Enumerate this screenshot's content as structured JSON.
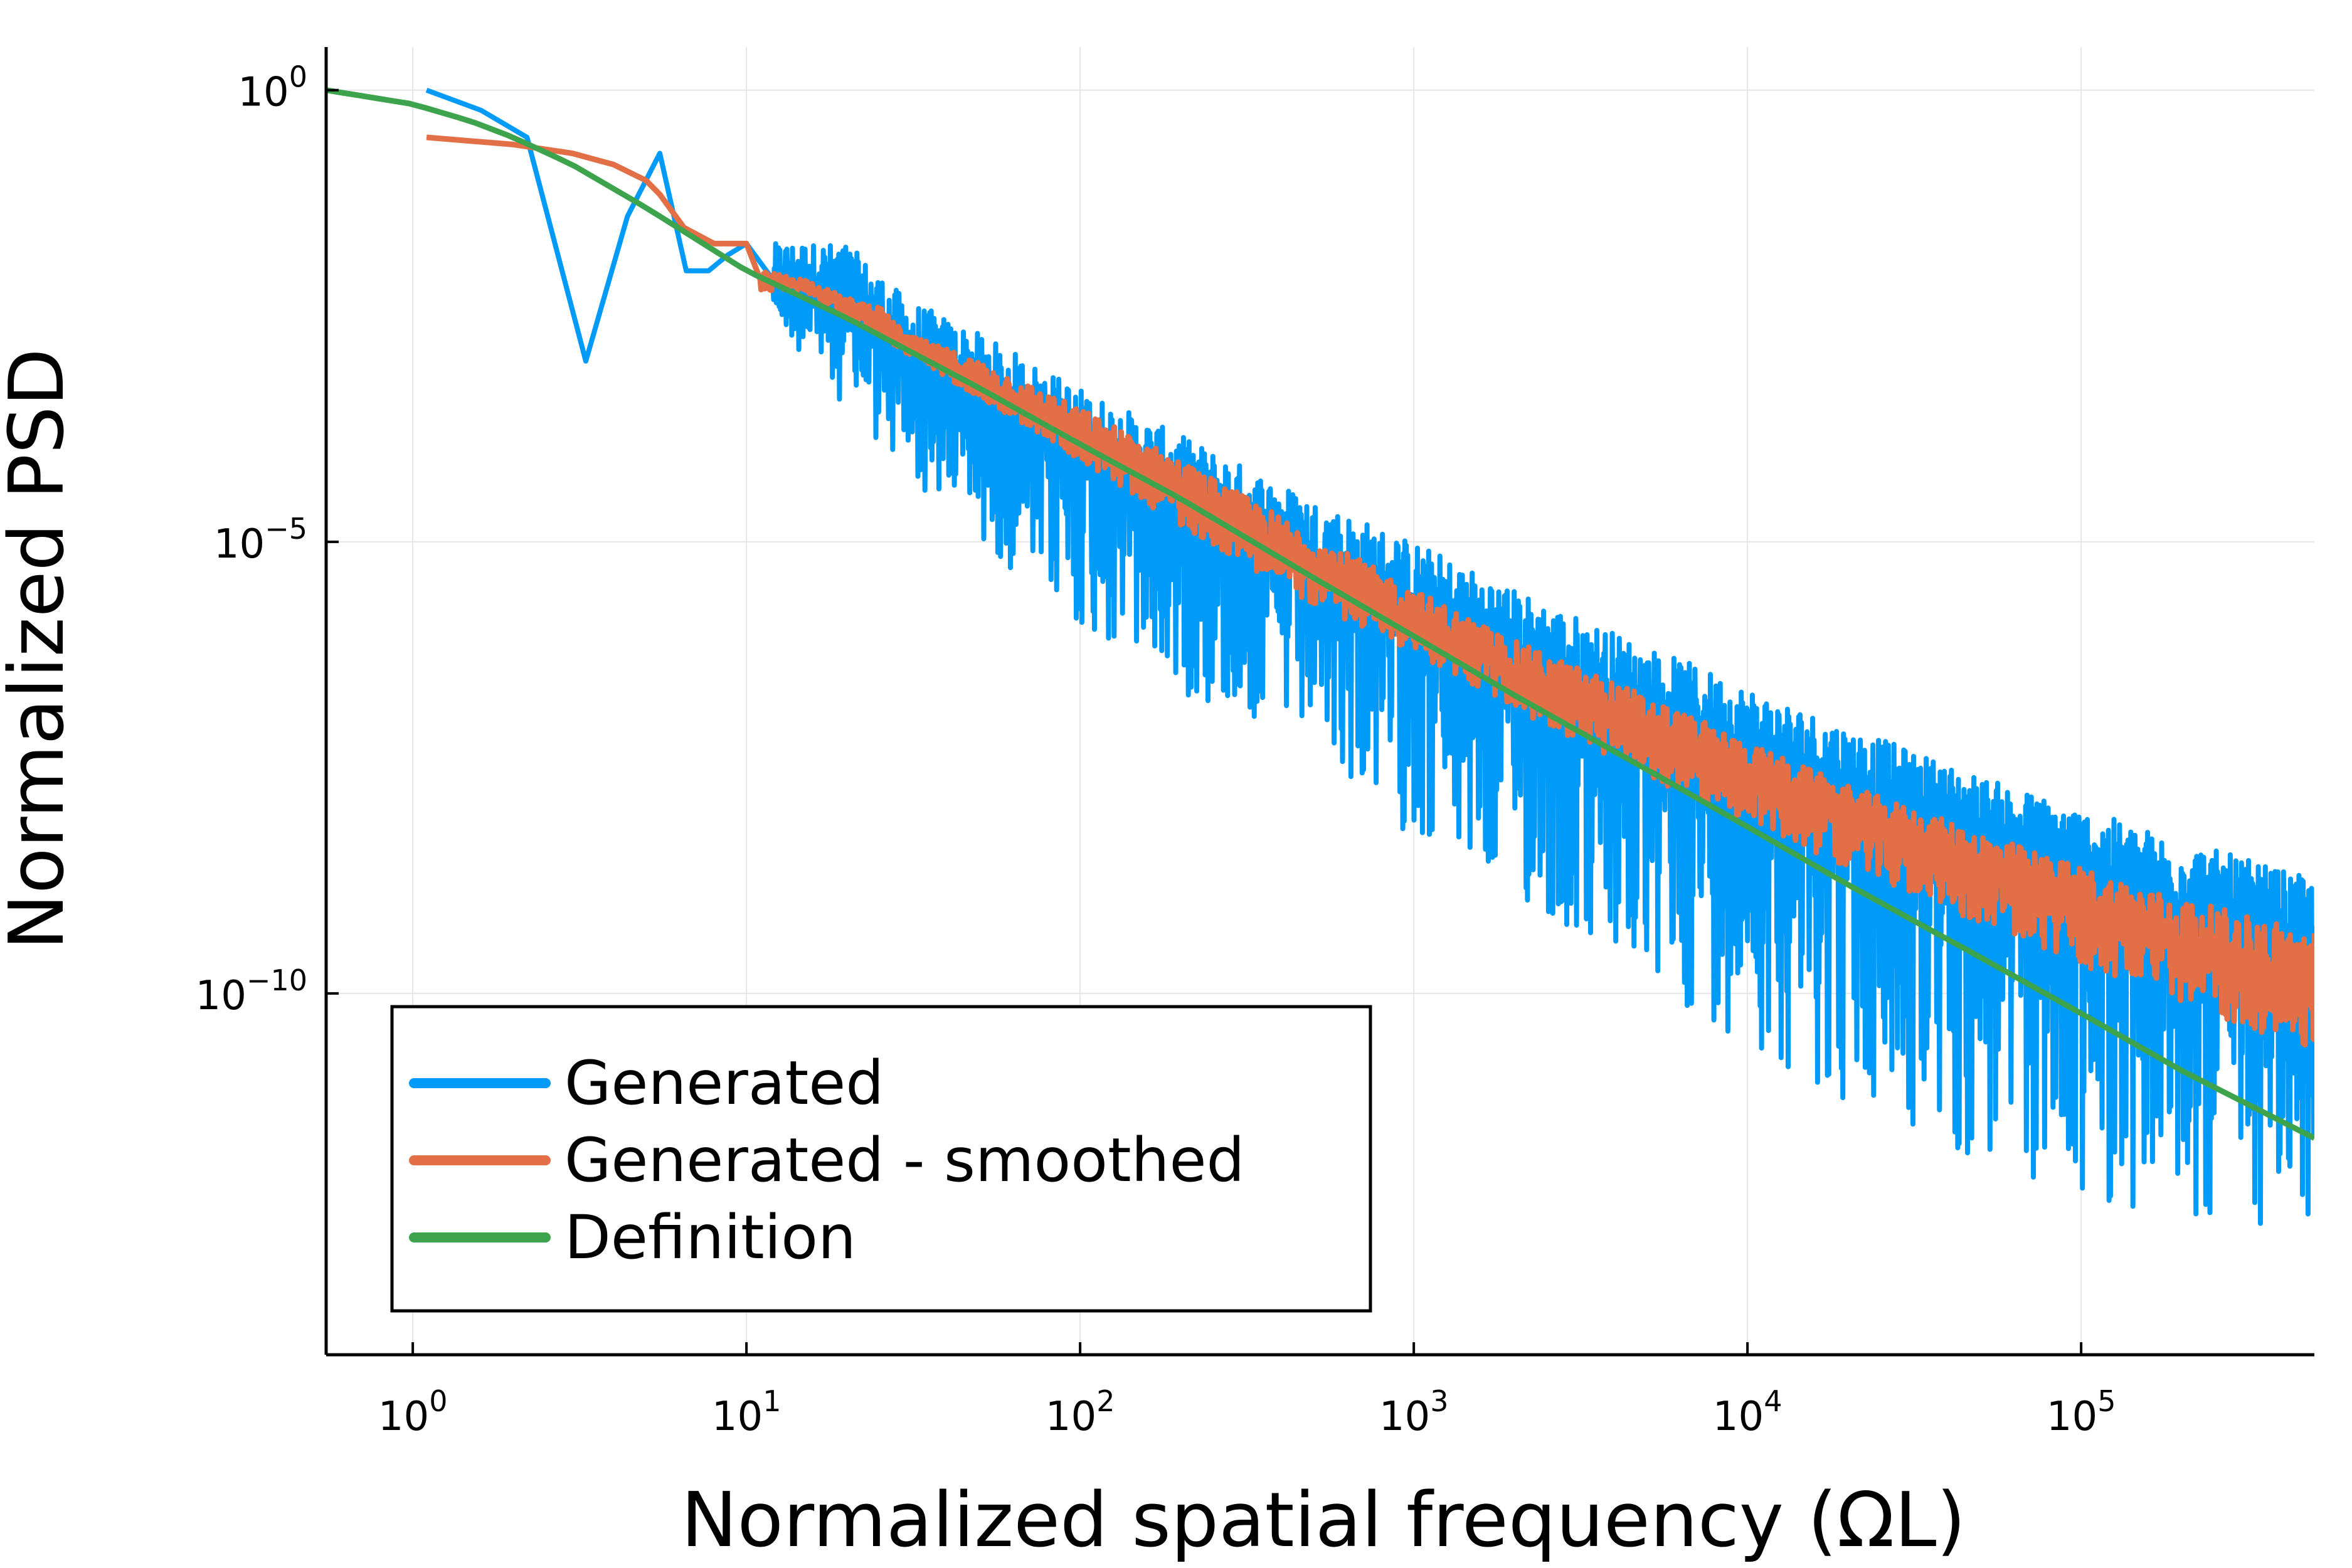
{
  "chart_data": {
    "type": "line",
    "title": "",
    "xlabel": "Normalized spatial frequency (ΩL)",
    "ylabel": "Normalized PSD",
    "x_scale": "log10",
    "y_scale": "log10",
    "xlim": [
      0.55,
      500000
    ],
    "ylim": [
      1e-14,
      3.0
    ],
    "grid": true,
    "legend_position": "bottom-left",
    "x_ticks": [
      {
        "value": 1,
        "label": "10^0"
      },
      {
        "value": 10,
        "label": "10^1"
      },
      {
        "value": 100,
        "label": "10^2"
      },
      {
        "value": 1000,
        "label": "10^3"
      },
      {
        "value": 10000,
        "label": "10^4"
      },
      {
        "value": 100000,
        "label": "10^5"
      }
    ],
    "y_ticks": [
      {
        "value": 1,
        "label": "10^0"
      },
      {
        "value": 1e-05,
        "label": "10^−5"
      },
      {
        "value": 1e-10,
        "label": "10^−10"
      }
    ],
    "series": [
      {
        "name": "Generated",
        "color": "#009AF9",
        "style": "noisy",
        "x": [
          1.1,
          1.6,
          2.2,
          3.3,
          4.4,
          5.5,
          6.6,
          7.7,
          8.8,
          10,
          12,
          15,
          20,
          30,
          50,
          100,
          200,
          500,
          1000,
          2000,
          5000,
          10000,
          20000,
          50000,
          100000,
          200000,
          500000
        ],
        "y": [
          1.0,
          0.6,
          0.3,
          0.001,
          0.04,
          0.2,
          0.01,
          0.01,
          0.015,
          0.02,
          0.008,
          0.008,
          0.005,
          0.001,
          0.0004,
          0.0001,
          3e-05,
          5e-06,
          1.5e-06,
          5e-07,
          1e-07,
          4e-08,
          1.5e-08,
          5e-09,
          2e-09,
          8e-10,
          3e-10
        ],
        "upper_envelope": [
          1.0,
          0.6,
          0.3,
          0.001,
          0.04,
          0.2,
          0.02,
          0.02,
          0.02,
          0.03,
          0.02,
          0.02,
          0.02,
          0.005,
          0.002,
          0.0005,
          0.00015,
          3e-05,
          1e-05,
          3e-06,
          7e-07,
          2.5e-07,
          9e-08,
          2.5e-08,
          1.1e-08,
          5e-09,
          1.8e-09
        ],
        "lower_envelope": [
          1.0,
          0.6,
          0.3,
          0.001,
          0.04,
          0.2,
          0.01,
          0.01,
          0.01,
          0.01,
          0.003,
          0.001,
          0.0003,
          5e-05,
          1e-05,
          1e-06,
          2e-07,
          5e-08,
          5e-09,
          1e-09,
          1e-10,
          3e-11,
          5e-12,
          1e-12,
          5e-13,
          3e-13,
          2e-13
        ]
      },
      {
        "name": "Generated - smoothed",
        "color": "#E26F46",
        "style": "band",
        "x": [
          1.1,
          2,
          3,
          4,
          5,
          5.5,
          6.5,
          8,
          10,
          11,
          15,
          20,
          25,
          30,
          50,
          100,
          200,
          500,
          1000,
          2000,
          5000,
          10000,
          20000,
          50000,
          100000,
          200000,
          500000
        ],
        "y": [
          0.3,
          0.25,
          0.2,
          0.15,
          0.1,
          0.07,
          0.03,
          0.02,
          0.02,
          0.008,
          0.007,
          0.004,
          0.003,
          0.0015,
          0.0006,
          0.00015,
          4e-05,
          5e-06,
          1.3e-06,
          3.5e-07,
          7e-08,
          2.5e-08,
          9e-09,
          2.5e-09,
          9e-10,
          3.5e-10,
          1.2e-10
        ],
        "upper_envelope": [
          0.3,
          0.25,
          0.2,
          0.15,
          0.1,
          0.07,
          0.03,
          0.02,
          0.02,
          0.01,
          0.008,
          0.005,
          0.004,
          0.002,
          0.001,
          0.0003,
          8e-05,
          1.2e-05,
          3e-06,
          8e-07,
          2e-07,
          6e-08,
          2e-08,
          6e-09,
          2.5e-09,
          1.1e-09,
          5e-10
        ],
        "lower_envelope": [
          0.3,
          0.25,
          0.2,
          0.15,
          0.1,
          0.07,
          0.03,
          0.02,
          0.02,
          0.006,
          0.006,
          0.003,
          0.002,
          0.0012,
          0.0004,
          8e-05,
          1.5e-05,
          2e-06,
          6e-07,
          1.4e-07,
          2.5e-08,
          8e-09,
          2.5e-09,
          6e-10,
          2e-10,
          8e-11,
          2.2e-11
        ]
      },
      {
        "name": "Definition",
        "color": "#3DA44D",
        "style": "line",
        "x": [
          0.55,
          1,
          1.5,
          2,
          3,
          5,
          10,
          20,
          50,
          100,
          200,
          500,
          1000,
          2000,
          5000,
          10000,
          20000,
          50000,
          100000,
          200000,
          500000
        ],
        "y": [
          1.0,
          0.7,
          0.45,
          0.3,
          0.15,
          0.05,
          0.01,
          0.003,
          0.0005,
          0.00012,
          3e-05,
          4e-06,
          9e-07,
          2e-07,
          3e-08,
          7e-09,
          1.6e-09,
          2.5e-10,
          6e-11,
          1.4e-11,
          2.5e-12
        ]
      }
    ]
  }
}
